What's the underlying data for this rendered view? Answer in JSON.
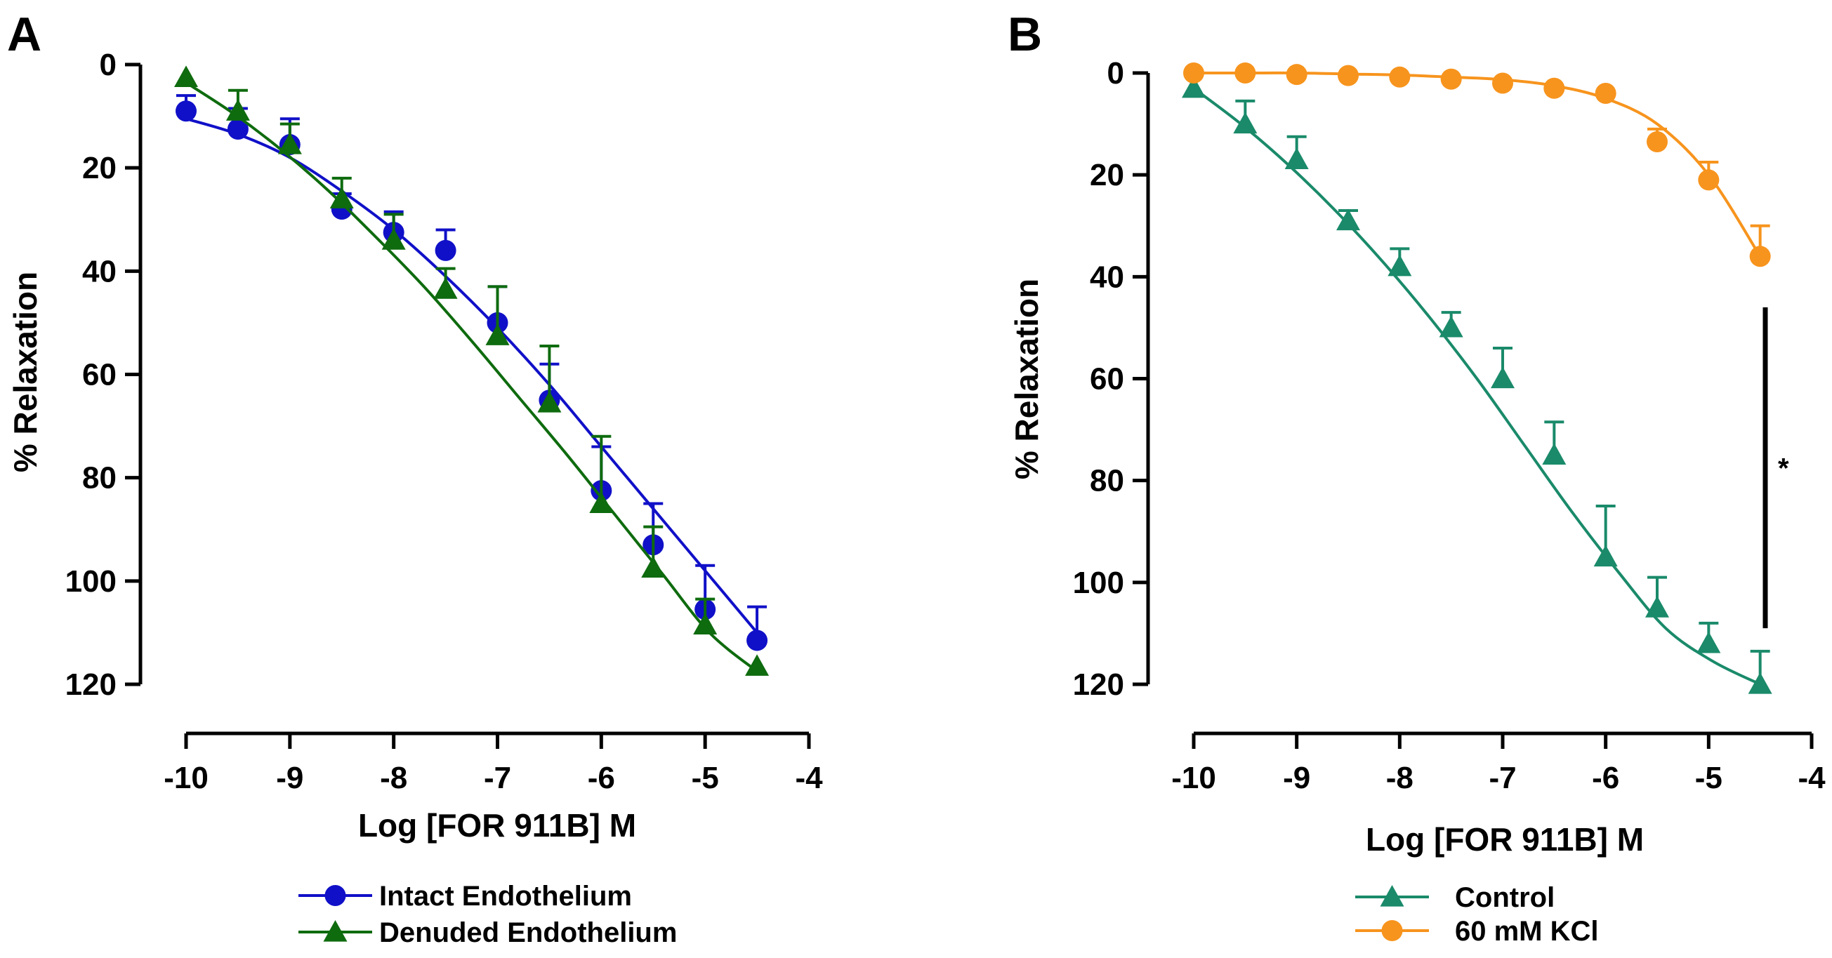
{
  "chart_data": [
    {
      "panel_label": "A",
      "type": "line",
      "title": "",
      "xlabel": "Log [FOR 911B] M",
      "ylabel": "% Relaxation",
      "xlim": [
        -10,
        -4
      ],
      "ylim": [
        0,
        120
      ],
      "y_inverted": true,
      "xticks": [
        -10,
        -9,
        -8,
        -7,
        -6,
        -5,
        -4
      ],
      "yticks": [
        0,
        20,
        40,
        60,
        80,
        100,
        120
      ],
      "xtick_labels": [
        "-10",
        "-9",
        "-8",
        "-7",
        "-6",
        "-5",
        "-4"
      ],
      "ytick_labels": [
        "0",
        "20",
        "40",
        "60",
        "80",
        "100",
        "120"
      ],
      "grid": false,
      "legend_position": "bottom",
      "series": [
        {
          "name": "Intact Endothelium",
          "color": "#1010C8",
          "marker": "circle",
          "x": [
            -10,
            -9.5,
            -9,
            -8.5,
            -8,
            -7.5,
            -7,
            -6.5,
            -6,
            -5.5,
            -5,
            -4.5
          ],
          "values": [
            9,
            12.5,
            15.5,
            28,
            32.5,
            36,
            50,
            65,
            82.5,
            93,
            105.5,
            111.5
          ],
          "error": [
            3,
            4,
            5,
            3,
            4,
            4,
            7,
            7,
            8.5,
            8,
            8.5,
            6.5
          ],
          "curve": [
            10.5,
            13.5,
            18,
            24.5,
            32,
            41,
            51,
            62,
            74,
            86,
            98,
            110
          ]
        },
        {
          "name": "Denuded Endothelium",
          "color": "#0E6B0E",
          "marker": "triangle",
          "x": [
            -10,
            -9.5,
            -9,
            -8.5,
            -8,
            -7.5,
            -7,
            -6.5,
            -6,
            -5.5,
            -5,
            -4.5
          ],
          "values": [
            2.5,
            9,
            15.5,
            26,
            34,
            43.5,
            52.5,
            65.5,
            85,
            97.5,
            108.5,
            116.5
          ],
          "error": [
            0,
            4,
            4,
            4,
            5,
            4,
            9.5,
            11,
            13,
            8,
            5,
            0
          ],
          "curve": [
            3.5,
            9.5,
            16.5,
            24.5,
            33.5,
            43,
            53.5,
            64.5,
            75.5,
            87,
            98.5,
            110,
            117.5
          ]
        }
      ]
    },
    {
      "panel_label": "B",
      "type": "line",
      "title": "",
      "xlabel": "Log [FOR 911B] M",
      "ylabel": "% Relaxation",
      "xlim": [
        -10,
        -4
      ],
      "ylim": [
        0,
        120
      ],
      "y_inverted": true,
      "xticks": [
        -10,
        -9,
        -8,
        -7,
        -6,
        -5,
        -4
      ],
      "yticks": [
        0,
        20,
        40,
        60,
        80,
        100,
        120
      ],
      "xtick_labels": [
        "-10",
        "-9",
        "-8",
        "-7",
        "-6",
        "-5",
        "-4"
      ],
      "ytick_labels": [
        "0",
        "20",
        "40",
        "60",
        "80",
        "100",
        "120"
      ],
      "grid": false,
      "legend_position": "bottom",
      "annotation": {
        "text": "*",
        "from": 46,
        "to": 109,
        "x": -4.45
      },
      "series": [
        {
          "name": "Control",
          "color": "#1A8A6A",
          "marker": "triangle",
          "x": [
            -10,
            -9.5,
            -9,
            -8.5,
            -8,
            -7.5,
            -7,
            -6.5,
            -6,
            -5.5,
            -5,
            -4.5
          ],
          "values": [
            3,
            10,
            17,
            29,
            38,
            50,
            60,
            75,
            95,
            105,
            112,
            120
          ],
          "error": [
            0,
            4.5,
            4.5,
            2,
            3.5,
            3,
            6,
            6.5,
            10,
            6,
            4,
            6.5
          ],
          "curve": [
            3,
            10,
            18,
            27,
            37,
            48,
            60,
            73,
            86,
            98,
            109,
            115.5,
            120
          ]
        },
        {
          "name": "60 mM KCl",
          "color": "#F7941D",
          "marker": "circle",
          "x": [
            -10,
            -9.5,
            -9,
            -8.5,
            -8,
            -7.5,
            -7,
            -6.5,
            -6,
            -5.5,
            -5,
            -4.5
          ],
          "values": [
            0,
            0,
            0.3,
            0.5,
            0.8,
            1.2,
            2,
            3,
            4,
            13.5,
            21,
            36
          ],
          "error": [
            0,
            0,
            0,
            0,
            0,
            0,
            0,
            0,
            0,
            2.5,
            3.5,
            6
          ],
          "curve": [
            0,
            0,
            0,
            0.2,
            0.4,
            0.8,
            1.3,
            2.5,
            5,
            10,
            20,
            36
          ]
        }
      ]
    }
  ]
}
